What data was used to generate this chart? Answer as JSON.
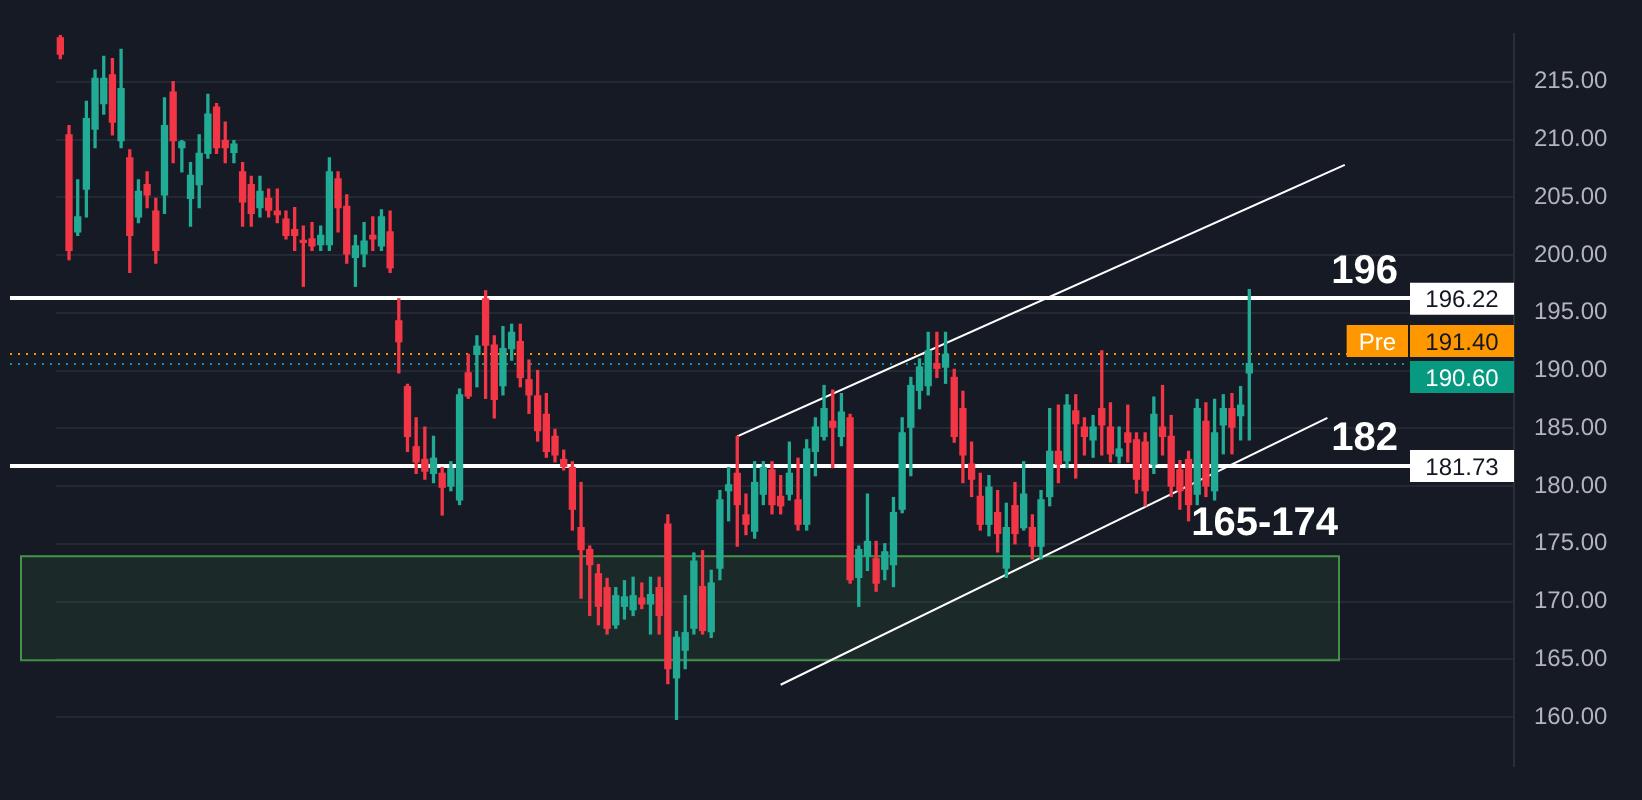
{
  "chart_data": {
    "type": "candlestick",
    "categories": [
      null,
      null,
      null,
      null,
      null,
      null,
      null,
      null,
      null,
      null,
      null,
      null,
      null,
      null,
      null,
      null,
      null,
      null,
      null,
      null,
      null,
      null,
      null,
      null,
      null,
      null,
      null,
      null,
      null,
      null,
      null,
      null,
      null,
      null,
      null,
      null,
      null,
      null,
      null,
      null,
      null,
      null,
      null,
      null,
      null,
      null,
      null,
      null,
      null,
      null,
      null,
      null,
      null,
      null,
      null,
      null,
      null,
      null,
      null,
      null,
      null,
      null,
      null,
      null,
      null,
      null,
      null,
      null,
      null,
      null,
      null,
      null,
      null,
      null,
      null,
      null,
      null,
      null,
      null,
      null,
      null,
      null,
      null,
      null,
      null,
      null,
      null,
      null,
      null,
      null,
      null,
      null,
      null,
      null,
      null,
      null,
      null,
      null,
      null,
      null,
      null,
      null,
      null,
      null,
      null,
      null,
      null,
      null,
      null,
      null,
      null,
      null,
      null,
      null,
      null,
      null,
      null,
      null,
      null,
      null,
      null,
      null,
      null,
      null,
      null,
      null,
      null,
      null,
      null,
      null,
      null,
      null,
      null,
      null,
      null,
      null,
      null,
      null,
      null,
      null,
      null,
      null,
      null,
      null,
      null,
      null,
      null,
      null,
      null,
      null,
      null,
      null,
      null,
      null,
      null,
      null,
      null,
      null,
      null,
      null,
      null,
      null,
      null,
      null,
      null,
      null,
      null,
      null
    ],
    "ohlc": [
      [
        218.8,
        219.0,
        217.0,
        217.4
      ],
      [
        210.4,
        211.2,
        199.6,
        200.4
      ],
      [
        202.0,
        206.5,
        201.7,
        203.3
      ],
      [
        205.7,
        213.3,
        203.3,
        211.8
      ],
      [
        210.9,
        216.0,
        209.3,
        215.3
      ],
      [
        213.1,
        217.2,
        212.2,
        215.3
      ],
      [
        215.6,
        217.0,
        210.4,
        211.5
      ],
      [
        209.9,
        217.8,
        209.3,
        214.4
      ],
      [
        208.4,
        209.1,
        198.5,
        201.7
      ],
      [
        203.3,
        206.5,
        202.8,
        205.5
      ],
      [
        206.1,
        207.2,
        204.1,
        205.2
      ],
      [
        203.8,
        204.9,
        199.3,
        200.4
      ],
      [
        205.2,
        213.6,
        203.6,
        211.2
      ],
      [
        214.1,
        215.0,
        208.0,
        209.9
      ],
      [
        209.3,
        209.9,
        207.2,
        209.8
      ],
      [
        204.9,
        208.0,
        202.5,
        206.9
      ],
      [
        206.1,
        210.4,
        204.1,
        208.8
      ],
      [
        208.8,
        213.9,
        208.4,
        212.2
      ],
      [
        212.8,
        213.1,
        208.8,
        209.3
      ],
      [
        209.9,
        211.5,
        208.0,
        209.3
      ],
      [
        208.9,
        209.9,
        208.0,
        209.6
      ],
      [
        207.2,
        208.0,
        202.5,
        204.6
      ],
      [
        206.1,
        206.8,
        202.5,
        203.6
      ],
      [
        204.1,
        206.8,
        203.3,
        205.5
      ],
      [
        204.9,
        205.7,
        203.3,
        203.9
      ],
      [
        203.8,
        205.7,
        202.8,
        203.5
      ],
      [
        203.1,
        203.8,
        201.4,
        201.7
      ],
      [
        202.2,
        204.1,
        200.4,
        201.7
      ],
      [
        201.2,
        202.5,
        197.3,
        201.1
      ],
      [
        201.4,
        202.8,
        200.4,
        200.8
      ],
      [
        200.9,
        202.5,
        200.4,
        201.7
      ],
      [
        200.9,
        208.4,
        200.4,
        207.2
      ],
      [
        206.6,
        207.2,
        202.0,
        204.1
      ],
      [
        204.2,
        205.2,
        199.3,
        200.1
      ],
      [
        199.8,
        201.7,
        197.3,
        200.8
      ],
      [
        200.1,
        202.8,
        199.0,
        201.2
      ],
      [
        201.7,
        203.3,
        200.4,
        201.4
      ],
      [
        200.8,
        203.9,
        200.4,
        203.3
      ],
      [
        202.0,
        203.8,
        198.5,
        198.9
      ],
      [
        194.3,
        196.2,
        189.8,
        192.5
      ],
      [
        188.6,
        188.8,
        183.0,
        184.3
      ],
      [
        183.4,
        185.9,
        181.1,
        182.1
      ],
      [
        182.3,
        185.1,
        180.6,
        181.3
      ],
      [
        181.1,
        184.3,
        180.3,
        182.4
      ],
      [
        181.1,
        181.6,
        177.5,
        179.9
      ],
      [
        180.0,
        182.1,
        179.6,
        181.5
      ],
      [
        178.8,
        188.4,
        178.4,
        187.9
      ],
      [
        189.8,
        191.4,
        187.6,
        187.8
      ],
      [
        191.4,
        193.0,
        188.6,
        192.1
      ],
      [
        196.2,
        196.9,
        187.6,
        192.2
      ],
      [
        192.2,
        193.0,
        185.9,
        187.5
      ],
      [
        188.7,
        193.8,
        187.9,
        191.9
      ],
      [
        191.9,
        194.0,
        190.9,
        193.3
      ],
      [
        192.5,
        194.0,
        188.6,
        189.4
      ],
      [
        189.2,
        190.9,
        186.3,
        187.9
      ],
      [
        187.8,
        190.0,
        183.9,
        184.8
      ],
      [
        186.2,
        188.0,
        182.5,
        183.0
      ],
      [
        184.3,
        184.9,
        182.1,
        182.7
      ],
      [
        182.3,
        183.1,
        181.4,
        181.7
      ],
      [
        181.6,
        182.1,
        176.2,
        178.0
      ],
      [
        176.4,
        180.3,
        170.3,
        174.5
      ],
      [
        174.5,
        174.8,
        168.8,
        173.2
      ],
      [
        172.4,
        173.2,
        168.0,
        169.6
      ],
      [
        171.2,
        172.0,
        167.2,
        167.7
      ],
      [
        168.0,
        171.2,
        167.7,
        170.5
      ],
      [
        169.6,
        171.8,
        168.5,
        170.4
      ],
      [
        169.3,
        172.1,
        168.8,
        170.5
      ],
      [
        170.3,
        171.6,
        169.4,
        169.8
      ],
      [
        169.8,
        172.1,
        167.2,
        170.6
      ],
      [
        171.2,
        172.1,
        167.2,
        168.8
      ],
      [
        176.7,
        177.5,
        162.9,
        164.2
      ],
      [
        163.4,
        167.4,
        159.8,
        166.9
      ],
      [
        165.8,
        170.5,
        164.2,
        167.3
      ],
      [
        167.7,
        174.2,
        167.2,
        173.5
      ],
      [
        171.3,
        174.4,
        167.2,
        167.5
      ],
      [
        167.4,
        172.7,
        166.9,
        171.6
      ],
      [
        172.9,
        179.6,
        171.9,
        178.8
      ],
      [
        179.6,
        181.6,
        177.0,
        180.1
      ],
      [
        181.1,
        184.3,
        174.8,
        178.4
      ],
      [
        177.5,
        179.3,
        175.8,
        176.7
      ],
      [
        176.1,
        182.1,
        175.5,
        180.3
      ],
      [
        179.3,
        182.1,
        178.4,
        181.6
      ],
      [
        181.4,
        182.1,
        177.6,
        178.4
      ],
      [
        179.1,
        180.9,
        177.6,
        178.3
      ],
      [
        179.3,
        183.8,
        178.8,
        181.1
      ],
      [
        178.8,
        182.4,
        176.2,
        176.7
      ],
      [
        176.7,
        184.0,
        176.2,
        183.2
      ],
      [
        183.0,
        185.9,
        180.9,
        185.1
      ],
      [
        184.3,
        188.7,
        184.0,
        186.7
      ],
      [
        185.6,
        188.3,
        181.6,
        185.1
      ],
      [
        184.3,
        188.0,
        183.5,
        186.4
      ],
      [
        185.9,
        186.2,
        171.6,
        171.9
      ],
      [
        172.1,
        174.8,
        169.6,
        174.5
      ],
      [
        174.0,
        179.3,
        172.7,
        175.2
      ],
      [
        173.7,
        175.2,
        170.9,
        171.6
      ],
      [
        172.8,
        175.0,
        171.9,
        174.3
      ],
      [
        173.2,
        179.0,
        171.3,
        177.7
      ],
      [
        178.0,
        185.9,
        177.7,
        184.6
      ],
      [
        185.1,
        189.4,
        180.9,
        188.7
      ],
      [
        188.3,
        191.0,
        186.7,
        190.3
      ],
      [
        188.7,
        193.3,
        187.9,
        191.7
      ],
      [
        190.6,
        193.3,
        189.4,
        190.2
      ],
      [
        190.3,
        193.3,
        188.9,
        191.4
      ],
      [
        189.4,
        190.1,
        183.8,
        184.3
      ],
      [
        186.7,
        188.2,
        180.3,
        182.7
      ],
      [
        181.9,
        183.8,
        179.1,
        180.6
      ],
      [
        179.1,
        181.1,
        176.2,
        176.7
      ],
      [
        176.7,
        180.9,
        175.7,
        179.9
      ],
      [
        177.7,
        179.6,
        174.3,
        175.9
      ],
      [
        172.9,
        178.5,
        172.1,
        176.4
      ],
      [
        178.3,
        180.3,
        175.0,
        175.9
      ],
      [
        176.4,
        182.1,
        176.2,
        179.3
      ],
      [
        176.4,
        177.5,
        173.7,
        174.8
      ],
      [
        174.8,
        179.6,
        173.7,
        178.8
      ],
      [
        179.1,
        186.7,
        178.3,
        183.0
      ],
      [
        183.0,
        187.0,
        180.3,
        181.9
      ],
      [
        182.2,
        187.9,
        181.6,
        187.0
      ],
      [
        186.5,
        187.9,
        180.7,
        185.4
      ],
      [
        185.1,
        185.9,
        182.7,
        184.3
      ],
      [
        184.0,
        186.1,
        182.5,
        185.1
      ],
      [
        186.7,
        191.7,
        182.7,
        185.3
      ],
      [
        185.1,
        187.2,
        182.1,
        182.8
      ],
      [
        182.6,
        185.1,
        182.0,
        183.2
      ],
      [
        184.6,
        187.0,
        182.1,
        183.8
      ],
      [
        184.0,
        184.6,
        179.4,
        180.6
      ],
      [
        183.8,
        184.6,
        178.3,
        179.6
      ],
      [
        181.9,
        187.7,
        181.1,
        186.2
      ],
      [
        185.1,
        188.7,
        182.7,
        184.3
      ],
      [
        184.3,
        186.1,
        179.1,
        180.0
      ],
      [
        181.4,
        182.2,
        178.0,
        179.6
      ],
      [
        182.3,
        183.0,
        177.0,
        178.4
      ],
      [
        179.3,
        187.5,
        178.4,
        186.7
      ],
      [
        185.6,
        187.2,
        179.1,
        180.0
      ],
      [
        179.6,
        187.5,
        178.8,
        184.6
      ],
      [
        185.3,
        187.9,
        182.8,
        186.7
      ],
      [
        186.7,
        188.0,
        182.8,
        185.1
      ],
      [
        186.1,
        188.6,
        184.0,
        187.0
      ],
      [
        189.8,
        197.0,
        184.0,
        190.6
      ],
      null,
      null,
      null,
      null,
      null,
      null,
      null,
      null,
      null,
      null,
      null,
      null,
      null,
      null,
      null,
      null,
      null,
      null,
      null,
      null,
      null,
      null,
      null,
      null,
      null,
      null,
      null,
      null,
      null,
      null
    ],
    "colors": [
      "#f23645",
      "#f23645",
      "#22ab94",
      "#22ab94",
      "#22ab94",
      "#22ab94",
      "#f23645",
      "#22ab94",
      "#f23645",
      "#22ab94",
      "#f23645",
      "#f23645",
      "#22ab94",
      "#f23645",
      "#22ab94",
      "#22ab94",
      "#22ab94",
      "#22ab94",
      "#f23645",
      "#f23645",
      "#22ab94",
      "#f23645",
      "#f23645",
      "#22ab94",
      "#f23645",
      "#f23645",
      "#f23645",
      "#f23645",
      "#f23645",
      "#f23645",
      "#22ab94",
      "#22ab94",
      "#f23645",
      "#f23645",
      "#22ab94",
      "#22ab94",
      "#f23645",
      "#22ab94",
      "#f23645",
      "#f23645",
      "#f23645",
      "#f23645",
      "#f23645",
      "#22ab94",
      "#f23645",
      "#22ab94",
      "#22ab94",
      "#f23645",
      "#22ab94",
      "#f23645",
      "#f23645",
      "#22ab94",
      "#22ab94",
      "#f23645",
      "#f23645",
      "#f23645",
      "#f23645",
      "#f23645",
      "#f23645",
      "#f23645",
      "#f23645",
      "#f23645",
      "#f23645",
      "#f23645",
      "#22ab94",
      "#22ab94",
      "#22ab94",
      "#f23645",
      "#22ab94",
      "#f23645",
      "#f23645",
      "#22ab94",
      "#22ab94",
      "#22ab94",
      "#f23645",
      "#22ab94",
      "#22ab94",
      "#22ab94",
      "#f23645",
      "#f23645",
      "#22ab94",
      "#22ab94",
      "#f23645",
      "#f23645",
      "#22ab94",
      "#f23645",
      "#22ab94",
      "#22ab94",
      "#22ab94",
      "#f23645",
      "#22ab94",
      "#f23645",
      "#22ab94",
      "#22ab94",
      "#f23645",
      "#22ab94",
      "#22ab94",
      "#22ab94",
      "#22ab94",
      "#22ab94",
      "#22ab94",
      "#f23645",
      "#22ab94",
      "#f23645",
      "#f23645",
      "#f23645",
      "#f23645",
      "#22ab94",
      "#f23645",
      "#22ab94",
      "#f23645",
      "#22ab94",
      "#f23645",
      "#22ab94",
      "#22ab94",
      "#f23645",
      "#22ab94",
      "#f23645",
      "#f23645",
      "#22ab94",
      "#f23645",
      "#f23645",
      "#22ab94",
      "#f23645",
      "#f23645",
      "#f23645",
      "#22ab94",
      "#f23645",
      "#f23645",
      "#f23645",
      "#f23645",
      "#22ab94",
      "#f23645",
      "#22ab94",
      "#22ab94",
      "#f23645",
      "#22ab94",
      "#22ab94",
      null,
      null,
      null,
      null,
      null,
      null,
      null,
      null,
      null,
      null,
      null,
      null,
      null,
      null,
      null,
      null,
      null,
      null,
      null,
      null,
      null,
      null,
      null,
      null,
      null,
      null,
      null,
      null,
      null,
      null
    ],
    "series": [
      {
        "type": "line",
        "color": "#ffffff",
        "values": [
          null,
          null,
          null,
          null,
          null,
          null,
          null,
          null,
          null,
          null,
          null,
          null,
          null,
          null,
          null,
          null,
          null,
          null,
          null,
          null,
          null,
          null,
          null,
          null,
          null,
          null,
          null,
          null,
          null,
          null,
          null,
          null,
          null,
          null,
          null,
          null,
          null,
          null,
          null,
          null,
          null,
          null,
          null,
          null,
          null,
          null,
          null,
          null,
          null,
          null,
          null,
          null,
          null,
          null,
          null,
          null,
          null,
          null,
          null,
          null,
          null,
          null,
          null,
          null,
          null,
          null,
          null,
          null,
          null,
          null,
          null,
          null,
          null,
          null,
          null,
          null,
          null,
          null,
          184.3,
          null,
          null,
          null,
          null,
          null,
          null,
          null,
          null,
          null,
          null,
          null,
          null,
          null,
          null,
          null,
          null,
          null,
          null,
          null,
          null,
          null,
          null,
          null,
          null,
          null,
          null,
          null,
          null,
          null,
          null,
          null,
          null,
          null,
          null,
          null,
          null,
          null,
          null,
          null,
          null,
          null,
          null,
          null,
          null,
          null,
          null,
          null,
          null,
          null,
          null,
          null,
          null,
          null,
          null,
          null,
          null,
          null,
          null,
          null,
          null,
          null,
          null,
          null,
          null,
          null,
          null,
          null,
          null,
          null,
          207.8,
          null,
          null,
          null,
          null,
          null,
          null,
          null,
          null,
          null,
          null,
          null,
          null,
          null,
          null,
          null,
          null,
          null,
          null,
          null
        ]
      },
      {
        "type": "line",
        "color": "#ffffff",
        "values": [
          null,
          null,
          null,
          null,
          null,
          null,
          null,
          null,
          null,
          null,
          null,
          null,
          null,
          null,
          null,
          null,
          null,
          null,
          null,
          null,
          null,
          null,
          null,
          null,
          null,
          null,
          null,
          null,
          null,
          null,
          null,
          null,
          null,
          null,
          null,
          null,
          null,
          null,
          null,
          null,
          null,
          null,
          null,
          null,
          null,
          null,
          null,
          null,
          null,
          null,
          null,
          null,
          null,
          null,
          null,
          null,
          null,
          null,
          null,
          null,
          null,
          null,
          null,
          null,
          null,
          null,
          null,
          null,
          null,
          null,
          null,
          null,
          null,
          null,
          null,
          null,
          null,
          null,
          null,
          null,
          null,
          null,
          null,
          162.8,
          null,
          null,
          null,
          null,
          null,
          null,
          null,
          null,
          null,
          null,
          null,
          null,
          null,
          null,
          null,
          null,
          null,
          null,
          null,
          null,
          null,
          null,
          null,
          null,
          null,
          null,
          null,
          null,
          null,
          null,
          null,
          null,
          null,
          null,
          null,
          null,
          null,
          null,
          null,
          null,
          null,
          null,
          null,
          null,
          null,
          null,
          null,
          null,
          null,
          null,
          null,
          null,
          null,
          null,
          null,
          null,
          null,
          null,
          null,
          null,
          null,
          null,
          185.9,
          null,
          null,
          null,
          null,
          null,
          null,
          null,
          null,
          null,
          null,
          null,
          null,
          null,
          null,
          null,
          null,
          null,
          null,
          null,
          null,
          null
        ]
      }
    ],
    "ylim": [
      155.8,
      219.1
    ],
    "yticks": [
      {
        "value": 160,
        "label": "160.00"
      },
      {
        "value": 165,
        "label": "165.00"
      },
      {
        "value": 170,
        "label": "170.00"
      },
      {
        "value": 175,
        "label": "175.00"
      },
      {
        "value": 180,
        "label": "180.00"
      },
      {
        "value": 185,
        "label": "185.00"
      },
      {
        "value": 190,
        "label": "190.00"
      },
      {
        "value": 195,
        "label": "195.00"
      },
      {
        "value": 200,
        "label": "200.00"
      },
      {
        "value": 205,
        "label": "205.00"
      },
      {
        "value": 210,
        "label": "210.00"
      },
      {
        "value": 215,
        "label": "215.00"
      }
    ],
    "grid": "y",
    "ref_lines": [
      {
        "axis": "y",
        "value": 196.22,
        "label": "196",
        "color": "#ffffff",
        "line_style": "solid"
      },
      {
        "axis": "y",
        "value": 181.73,
        "label": "182",
        "color": "#ffffff",
        "line_style": "solid"
      },
      {
        "axis": "y",
        "value": 191.4,
        "label": "Pre",
        "color": "#ff9800",
        "line_style": "dotted"
      },
      {
        "axis": "y",
        "value": 190.6,
        "color": "#089981",
        "line_style": "dotted"
      }
    ],
    "bands": [
      {
        "axis": "y",
        "from": 165,
        "to": 174,
        "label": "165-174",
        "color": "#4caf50"
      }
    ],
    "annotations": [
      {
        "text": "196.22",
        "y": 196.22
      },
      {
        "text": "191.40",
        "y": 191.4
      },
      {
        "text": "190.60",
        "y": 190.6
      },
      {
        "text": "181.73",
        "y": 181.73
      }
    ]
  }
}
